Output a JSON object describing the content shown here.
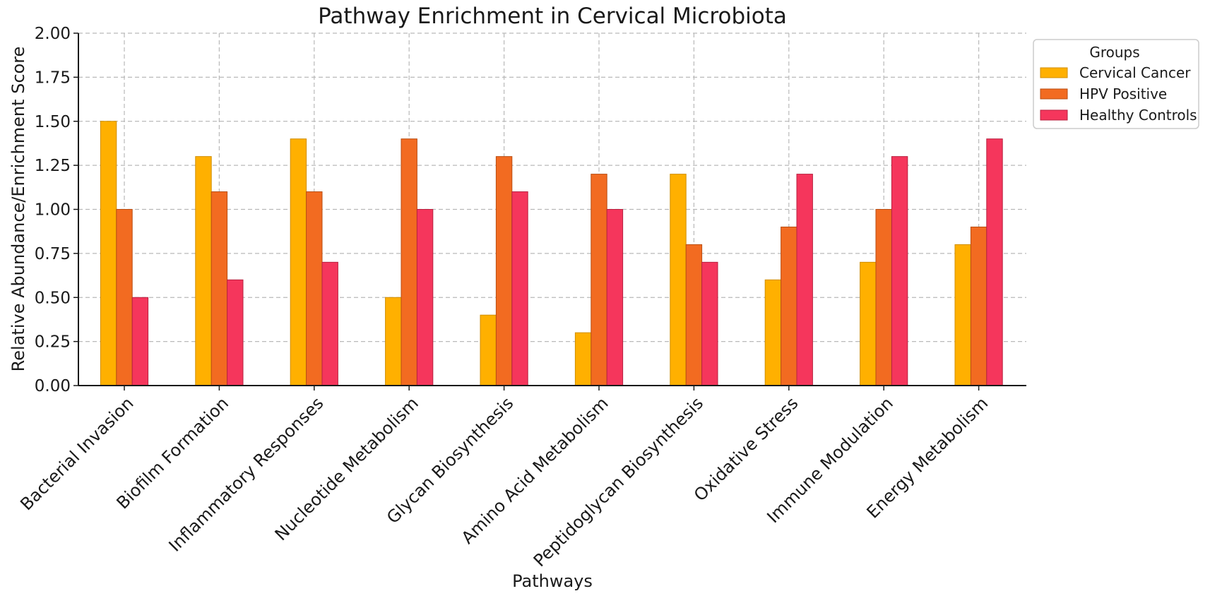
{
  "chart_data": {
    "type": "bar",
    "title": "Pathway Enrichment in Cervical Microbiota",
    "xlabel": "Pathways",
    "ylabel": "Relative Abundance/Enrichment Score",
    "ylim": [
      0,
      2.0
    ],
    "yticks": [
      "0.00",
      "0.25",
      "0.50",
      "0.75",
      "1.00",
      "1.25",
      "1.50",
      "1.75",
      "2.00"
    ],
    "ytick_values": [
      0,
      0.25,
      0.5,
      0.75,
      1.0,
      1.25,
      1.5,
      1.75,
      2.0
    ],
    "grid": true,
    "legend_title": "Groups",
    "legend_position": "outside-top-right",
    "categories": [
      "Bacterial Invasion",
      "Biofilm Formation",
      "Inflammatory Responses",
      "Nucleotide Metabolism",
      "Glycan Biosynthesis",
      "Amino Acid Metabolism",
      "Peptidoglycan Biosynthesis",
      "Oxidative Stress",
      "Immune Modulation",
      "Energy Metabolism"
    ],
    "series": [
      {
        "name": "Cervical Cancer",
        "color": "#FFB000",
        "edge": "#d08e00",
        "values": [
          1.5,
          1.3,
          1.4,
          0.5,
          0.4,
          0.3,
          1.2,
          0.6,
          0.7,
          0.8
        ]
      },
      {
        "name": "HPV Positive",
        "color": "#F26B21",
        "edge": "#b84d12",
        "values": [
          1.0,
          1.1,
          1.1,
          1.4,
          1.3,
          1.2,
          0.8,
          0.9,
          1.0,
          0.9
        ]
      },
      {
        "name": "Healthy Controls",
        "color": "#F5365C",
        "edge": "#b8213f",
        "values": [
          0.5,
          0.6,
          0.7,
          1.0,
          1.1,
          1.0,
          0.7,
          1.2,
          1.3,
          1.4
        ]
      }
    ]
  }
}
